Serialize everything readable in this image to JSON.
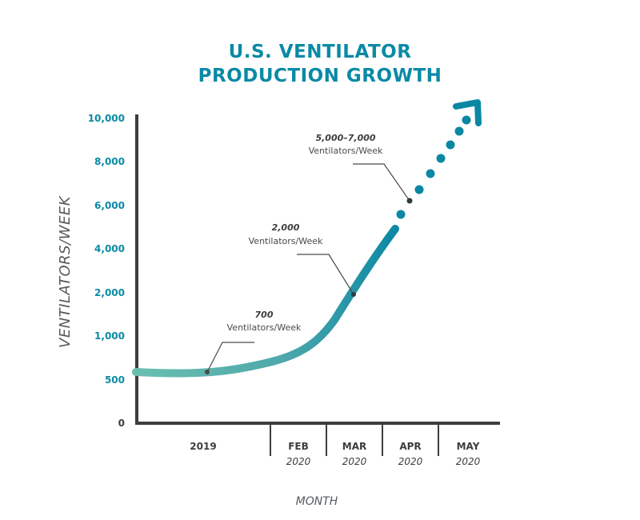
{
  "chart_data": {
    "type": "line",
    "title_lines": [
      "U.S. VENTILATOR",
      "PRODUCTION GROWTH"
    ],
    "ylabel": "VENTILATORS/WEEK",
    "xlabel": "MONTH",
    "y_tick_labels": [
      "0",
      "500",
      "1,000",
      "2,000",
      "4,000",
      "6,000",
      "8,000",
      "10,000"
    ],
    "x_categories": [
      {
        "month": "2019",
        "year": ""
      },
      {
        "month": "FEB",
        "year": "2020"
      },
      {
        "month": "MAR",
        "year": "2020"
      },
      {
        "month": "APR",
        "year": "2020"
      },
      {
        "month": "MAY",
        "year": "2020"
      }
    ],
    "series": [
      {
        "x": [
          "2019",
          "FEB 2020",
          "MAR 2020",
          "APR 2020",
          "MAY 2020"
        ],
        "y": [
          700,
          1000,
          2000,
          4000,
          10000
        ],
        "style": "solid to APR 2020, dotted projection to MAY 2020 with arrow"
      }
    ],
    "annotations": [
      {
        "value": "700",
        "unit": "Ventilators/Week"
      },
      {
        "value": "2,000",
        "unit": "Ventilators/Week"
      },
      {
        "value": "5,000–7,000",
        "unit": "Ventilators/Week"
      }
    ],
    "colors": {
      "start": "#69bfae",
      "end": "#0a87a3",
      "axis": "#3d3d3d",
      "title": "#0a8aa5"
    }
  }
}
